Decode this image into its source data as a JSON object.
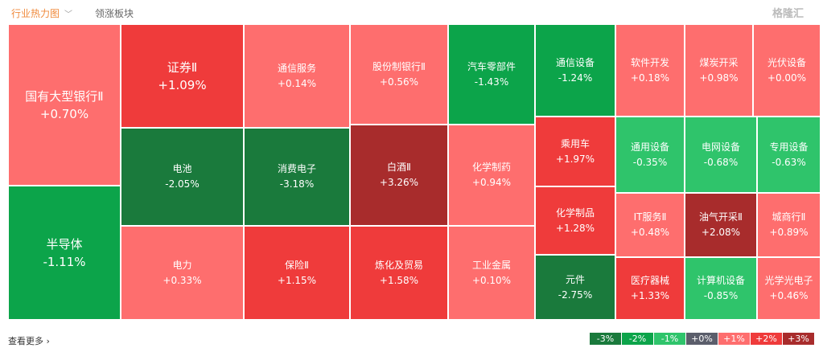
{
  "tabs": [
    {
      "label": "行业热力图"
    },
    {
      "label": "领涨板块"
    }
  ],
  "cells": [
    {
      "name": "国有大型银行Ⅱ",
      "change": "+0.70%",
      "level": "light-red"
    },
    {
      "name": "半导体",
      "change": "-1.11%",
      "level": "green"
    },
    {
      "name": "证券Ⅱ",
      "change": "+1.09%",
      "level": "red"
    },
    {
      "name": "电池",
      "change": "-2.05%",
      "level": "dark-green"
    },
    {
      "name": "电力",
      "change": "+0.33%",
      "level": "light-red"
    },
    {
      "name": "通信服务",
      "change": "+0.14%",
      "level": "light-red"
    },
    {
      "name": "消费电子",
      "change": "-3.18%",
      "level": "dark-green"
    },
    {
      "name": "保险Ⅱ",
      "change": "+1.15%",
      "level": "red"
    },
    {
      "name": "股份制银行Ⅱ",
      "change": "+0.56%",
      "level": "light-red"
    },
    {
      "name": "白酒Ⅱ",
      "change": "+3.26%",
      "level": "dark-red"
    },
    {
      "name": "炼化及贸易",
      "change": "+1.58%",
      "level": "red"
    },
    {
      "name": "汽车零部件",
      "change": "-1.43%",
      "level": "green"
    },
    {
      "name": "化学制药",
      "change": "+0.94%",
      "level": "light-red"
    },
    {
      "name": "工业金属",
      "change": "+0.10%",
      "level": "light-red"
    },
    {
      "name": "通信设备",
      "change": "-1.24%",
      "level": "green"
    },
    {
      "name": "乘用车",
      "change": "+1.97%",
      "level": "red"
    },
    {
      "name": "化学制品",
      "change": "+1.28%",
      "level": "red"
    },
    {
      "name": "元件",
      "change": "-2.75%",
      "level": "dark-green"
    },
    {
      "name": "软件开发",
      "change": "+0.18%",
      "level": "light-red"
    },
    {
      "name": "煤炭开采",
      "change": "+0.98%",
      "level": "light-red"
    },
    {
      "name": "光伏设备",
      "change": "+0.00%",
      "level": "light-red"
    },
    {
      "name": "通用设备",
      "change": "-0.35%",
      "level": "light-green"
    },
    {
      "name": "电网设备",
      "change": "-0.68%",
      "level": "light-green"
    },
    {
      "name": "专用设备",
      "change": "-0.63%",
      "level": "light-green"
    },
    {
      "name": "IT服务Ⅱ",
      "change": "+0.48%",
      "level": "light-red"
    },
    {
      "name": "油气开采Ⅱ",
      "change": "+2.08%",
      "level": "dark-red"
    },
    {
      "name": "城商行Ⅱ",
      "change": "+0.89%",
      "level": "light-red"
    },
    {
      "name": "医疗器械",
      "change": "+1.33%",
      "level": "red"
    },
    {
      "name": "计算机设备",
      "change": "-0.85%",
      "level": "light-green"
    },
    {
      "name": "光学光电子",
      "change": "+0.46%",
      "level": "light-red"
    }
  ],
  "footer": {
    "more": "查看更多 ›"
  },
  "legend": [
    "-3%",
    "-2%",
    "-1%",
    "+0%",
    "+1%",
    "+2%",
    "+3%"
  ],
  "colors": {
    "light-red": "#fe6e6e",
    "red": "#ef3b3b",
    "dark-red": "#a82c2c",
    "light-green": "#2fc46b",
    "green": "#0ca44a",
    "dark-green": "#1a7a3c",
    "neutral": "#5b5e6b"
  },
  "watermark": "格隆汇"
}
